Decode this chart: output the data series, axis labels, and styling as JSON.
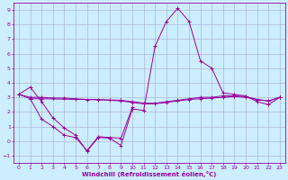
{
  "xlabel": "Windchill (Refroidissement éolien,°C)",
  "background_color": "#cceeff",
  "grid_color": "#aaaacc",
  "line_color": "#990099",
  "xlim": [
    -0.5,
    23.5
  ],
  "ylim": [
    -1.5,
    9.5
  ],
  "x_ticks": [
    0,
    1,
    2,
    3,
    4,
    5,
    6,
    7,
    8,
    9,
    10,
    11,
    12,
    13,
    14,
    15,
    16,
    17,
    18,
    19,
    20,
    21,
    22,
    23
  ],
  "y_ticks": [
    -1,
    0,
    1,
    2,
    3,
    4,
    5,
    6,
    7,
    8,
    9
  ],
  "series1_x": [
    0,
    1,
    2,
    3,
    4,
    5,
    6,
    7,
    8,
    9,
    10,
    11,
    12,
    13,
    14,
    15,
    16,
    17,
    18,
    19,
    20,
    21,
    22,
    23
  ],
  "series1_y": [
    3.2,
    3.7,
    2.7,
    1.6,
    0.9,
    0.4,
    -0.7,
    0.25,
    0.2,
    -0.3,
    2.2,
    2.1,
    6.5,
    8.2,
    9.1,
    8.2,
    5.5,
    5.0,
    3.3,
    3.2,
    3.1,
    2.7,
    2.5,
    3.0
  ],
  "series2_x": [
    0,
    1,
    2,
    9,
    10,
    11,
    12,
    13,
    14,
    15,
    16,
    17,
    18,
    19,
    20,
    21,
    22,
    23
  ],
  "series2_y": [
    3.2,
    2.9,
    2.9,
    2.8,
    2.7,
    2.6,
    2.6,
    2.7,
    2.8,
    2.9,
    3.0,
    3.0,
    3.1,
    3.1,
    3.05,
    2.85,
    2.75,
    3.0
  ],
  "series3_x": [
    0,
    1,
    2,
    3,
    4,
    5,
    6,
    7,
    8,
    9,
    10,
    11,
    12,
    13,
    14,
    15,
    16,
    17,
    18,
    19,
    20,
    21,
    22,
    23
  ],
  "series3_y": [
    3.2,
    3.0,
    3.0,
    2.95,
    2.95,
    2.9,
    2.85,
    2.85,
    2.8,
    2.75,
    2.65,
    2.55,
    2.55,
    2.65,
    2.75,
    2.85,
    2.9,
    2.95,
    3.0,
    3.05,
    3.0,
    2.85,
    2.75,
    3.0
  ],
  "series4_x": [
    1,
    2,
    3,
    4,
    5,
    6,
    7,
    8,
    9,
    10
  ],
  "series4_y": [
    2.9,
    1.5,
    1.0,
    0.4,
    0.25,
    -0.65,
    0.3,
    0.25,
    0.2,
    2.3
  ]
}
